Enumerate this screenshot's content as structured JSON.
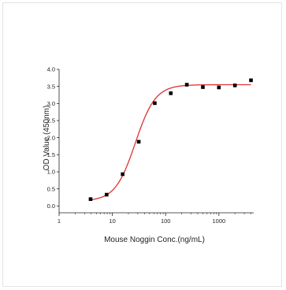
{
  "chart_data": {
    "type": "scatter",
    "title": "",
    "xlabel": "Mouse Noggin Conc.(ng/mL)",
    "ylabel": "OD Value (450nm)",
    "x_scale": "log",
    "xlim": [
      1,
      4500
    ],
    "ylim": [
      -0.2,
      4.0
    ],
    "x_ticks": [
      1,
      10,
      100,
      1000
    ],
    "x_tick_labels": [
      "1",
      "10",
      "100",
      "1000"
    ],
    "y_ticks": [
      0.0,
      0.5,
      1.0,
      1.5,
      2.0,
      2.5,
      3.0,
      3.5,
      4.0
    ],
    "y_tick_labels": [
      "0.0",
      "0.5",
      "1.0",
      "1.5",
      "2.0",
      "2.5",
      "3.0",
      "3.5",
      "4.0"
    ],
    "grid": false,
    "legend": "none",
    "series": [
      {
        "marker": "square",
        "color": "#000000",
        "x": [
          3.9,
          7.8,
          15.6,
          31.25,
          62.5,
          125,
          250,
          500,
          1000,
          2000,
          4000
        ],
        "y": [
          0.2,
          0.33,
          0.93,
          1.88,
          3.01,
          3.3,
          3.55,
          3.48,
          3.47,
          3.53,
          3.68
        ]
      }
    ],
    "fit_curve": {
      "model": "4PL",
      "color": "#e03030",
      "bottom": 0.14,
      "top": 3.55,
      "ec50": 27,
      "hill": 2.3,
      "x_range": [
        3.9,
        4000
      ]
    }
  }
}
